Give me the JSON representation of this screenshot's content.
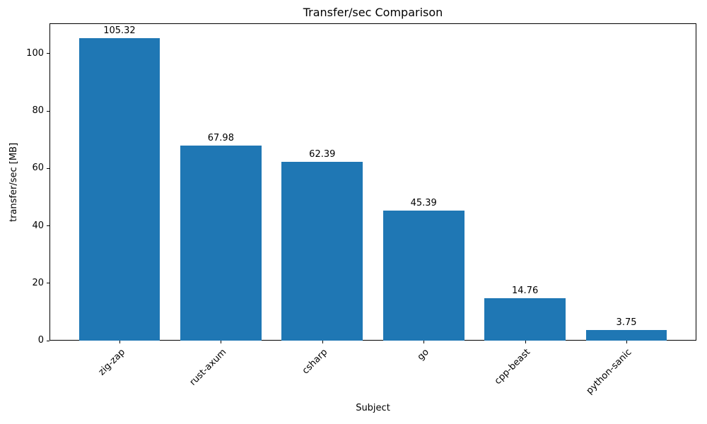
{
  "chart_data": {
    "type": "bar",
    "title": "Transfer/sec Comparison",
    "xlabel": "Subject",
    "ylabel": "transfer/sec [MB]",
    "categories": [
      "zig-zap",
      "rust-axum",
      "csharp",
      "go",
      "cpp-beast",
      "python-sanic"
    ],
    "values": [
      105.32,
      67.98,
      62.39,
      45.39,
      14.76,
      3.75
    ],
    "bar_labels": [
      "105.32",
      "67.98",
      "62.39",
      "45.39",
      "14.76",
      "3.75"
    ],
    "yticks": [
      0,
      20,
      40,
      60,
      80,
      100
    ],
    "ytick_labels": [
      "0",
      "20",
      "40",
      "60",
      "80",
      "100"
    ],
    "ylim": [
      0,
      110.59
    ],
    "bar_width_fraction": 0.8,
    "bar_color": "#1f77b4",
    "axis_color": "#000000",
    "grid": false,
    "legend_position": "none"
  }
}
